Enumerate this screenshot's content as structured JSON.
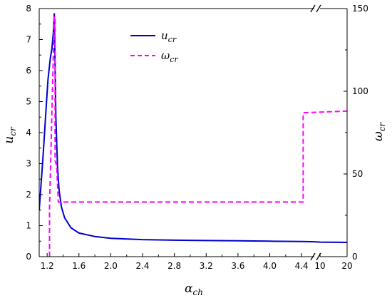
{
  "colors": {
    "u_cr": "#0000cc",
    "omega_cr": "#ff00ff",
    "axis": "#000000"
  },
  "chart_data": {
    "type": "line",
    "title": "",
    "xlabel": {
      "main": "α",
      "sub": "ch"
    },
    "ylabel_left": {
      "main": "u",
      "sub": "cr"
    },
    "ylabel_right": {
      "main": "ω",
      "sub": "cr"
    },
    "x_tick_labels": [
      "1.2",
      "1.6",
      "2.0",
      "2.4",
      "2.8",
      "3.2",
      "3.6",
      "4.0",
      "4.4",
      "10",
      "20"
    ],
    "y_left_ticks": [
      "0",
      "1",
      "2",
      "3",
      "4",
      "5",
      "6",
      "7",
      "8"
    ],
    "y_right_ticks": [
      "0",
      "50",
      "100",
      "150"
    ],
    "ylim_left": [
      0,
      8
    ],
    "ylim_right": [
      0,
      150
    ],
    "legend": {
      "placement": "top-center",
      "entries": [
        {
          "main": "u",
          "sub": "cr"
        },
        {
          "main": "ω",
          "sub": "cr"
        }
      ]
    },
    "x_axis_break": "between 4.4 and 10",
    "series": [
      {
        "name": {
          "main": "u",
          "sub": "cr"
        },
        "axis": "left",
        "style": "solid",
        "x": [
          1.1,
          1.15,
          1.18,
          1.21,
          1.24,
          1.26,
          1.28,
          1.29,
          1.31,
          1.33,
          1.35,
          1.38,
          1.42,
          1.5,
          1.6,
          1.8,
          2.0,
          2.4,
          2.8,
          3.2,
          3.6,
          4.0,
          4.4,
          4.56,
          10,
          20
        ],
        "y": [
          1.5,
          3.3,
          4.5,
          5.7,
          6.4,
          6.7,
          7.3,
          7.85,
          4.5,
          2.9,
          2.15,
          1.6,
          1.25,
          0.93,
          0.76,
          0.65,
          0.59,
          0.55,
          0.53,
          0.52,
          0.51,
          0.5,
          0.49,
          0.48,
          0.47,
          0.46
        ]
      },
      {
        "name": {
          "main": "ω",
          "sub": "cr"
        },
        "axis": "right",
        "style": "dashed",
        "x": [
          1.23,
          1.23,
          1.29,
          1.3,
          1.3,
          1.32,
          1.34,
          4.42,
          4.42,
          20
        ],
        "y": [
          0,
          30,
          145,
          145,
          58,
          55,
          33,
          33,
          87,
          88
        ]
      }
    ]
  }
}
